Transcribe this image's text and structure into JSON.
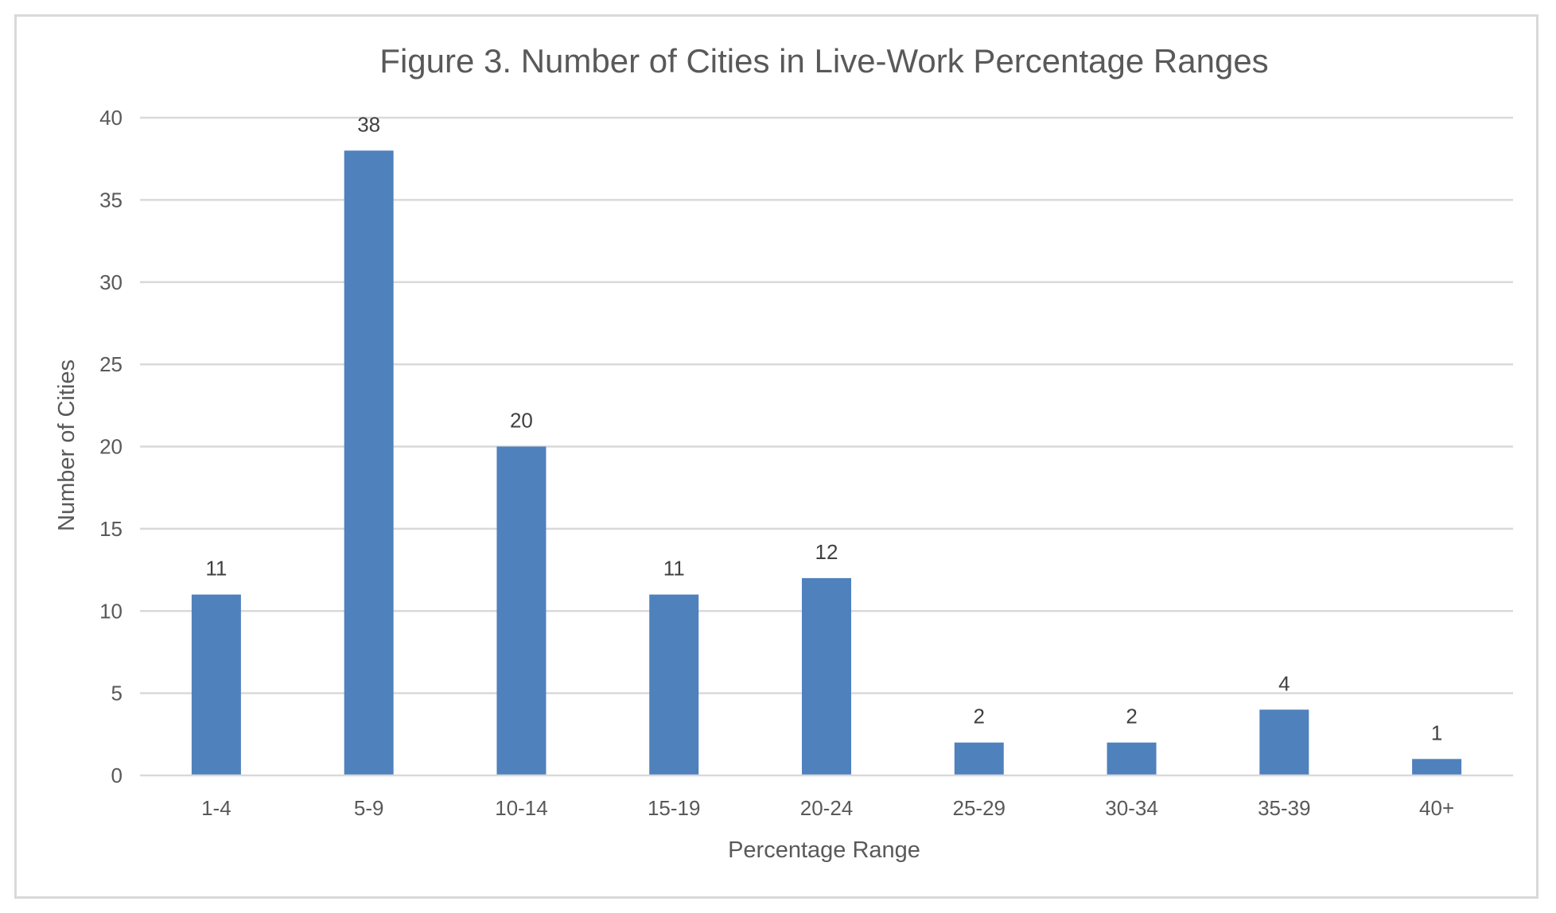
{
  "chart_data": {
    "type": "bar",
    "title": "Figure 3. Number of Cities in Live-Work Percentage Ranges",
    "xlabel": "Percentage Range",
    "ylabel": "Number of Cities",
    "categories": [
      "1-4",
      "5-9",
      "10-14",
      "15-19",
      "20-24",
      "25-29",
      "30-34",
      "35-39",
      "40+"
    ],
    "values": [
      11,
      38,
      20,
      11,
      12,
      2,
      2,
      4,
      1
    ],
    "ylim": [
      0,
      40
    ],
    "yticks": [
      0,
      5,
      10,
      15,
      20,
      25,
      30,
      35,
      40
    ],
    "grid": true,
    "data_labels": true,
    "legend": "none",
    "bar_color": "#4f81bd",
    "gridline_color": "#d9d9d9"
  }
}
